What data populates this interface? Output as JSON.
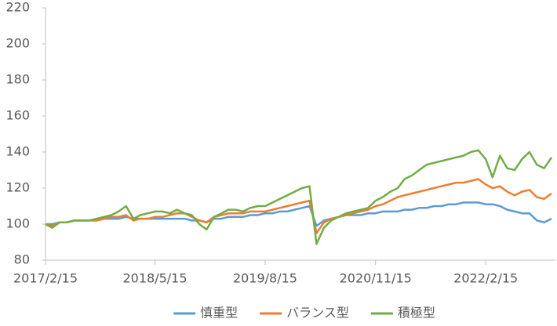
{
  "chart_data": {
    "type": "line",
    "x": [
      "2017/2/15",
      "2017/3/15",
      "2017/4/15",
      "2017/5/15",
      "2017/6/15",
      "2017/7/15",
      "2017/8/15",
      "2017/9/15",
      "2017/10/15",
      "2017/11/15",
      "2017/12/15",
      "2018/1/15",
      "2018/2/15",
      "2018/3/15",
      "2018/4/15",
      "2018/5/15",
      "2018/6/15",
      "2018/7/15",
      "2018/8/15",
      "2018/9/15",
      "2018/10/15",
      "2018/11/15",
      "2018/12/15",
      "2019/1/15",
      "2019/2/15",
      "2019/3/15",
      "2019/4/15",
      "2019/5/15",
      "2019/6/15",
      "2019/7/15",
      "2019/8/15",
      "2019/9/15",
      "2019/10/15",
      "2019/11/15",
      "2019/12/15",
      "2020/1/15",
      "2020/2/15",
      "2020/3/15",
      "2020/4/15",
      "2020/5/15",
      "2020/6/15",
      "2020/7/15",
      "2020/8/15",
      "2020/9/15",
      "2020/10/15",
      "2020/11/15",
      "2020/12/15",
      "2021/1/15",
      "2021/2/15",
      "2021/3/15",
      "2021/4/15",
      "2021/5/15",
      "2021/6/15",
      "2021/7/15",
      "2021/8/15",
      "2021/9/15",
      "2021/10/15",
      "2021/11/15",
      "2021/12/15",
      "2022/1/15",
      "2022/2/15",
      "2022/3/15",
      "2022/4/15",
      "2022/5/15",
      "2022/6/15",
      "2022/7/15",
      "2022/8/15",
      "2022/9/15",
      "2022/10/15",
      "2022/11/15"
    ],
    "series": [
      {
        "name": "慎重型",
        "color": "#5b9bd5",
        "values": [
          100,
          100,
          101,
          101,
          102,
          102,
          102,
          102,
          103,
          103,
          103,
          104,
          103,
          103,
          103,
          103,
          103,
          103,
          103,
          103,
          102,
          102,
          101,
          103,
          103,
          104,
          104,
          104,
          105,
          105,
          106,
          106,
          107,
          107,
          108,
          109,
          110,
          99,
          102,
          103,
          104,
          105,
          105,
          105,
          106,
          106,
          107,
          107,
          107,
          108,
          108,
          109,
          109,
          110,
          110,
          111,
          111,
          112,
          112,
          112,
          111,
          111,
          110,
          108,
          107,
          106,
          106,
          102,
          101,
          103
        ]
      },
      {
        "name": "バランス型",
        "color": "#ed7d31",
        "values": [
          100,
          99,
          101,
          101,
          102,
          102,
          102,
          102,
          103,
          104,
          104,
          105,
          102,
          103,
          103,
          104,
          104,
          105,
          106,
          106,
          104,
          102,
          101,
          104,
          105,
          106,
          106,
          106,
          107,
          107,
          107,
          108,
          109,
          110,
          111,
          112,
          113,
          95,
          101,
          103,
          104,
          105,
          106,
          107,
          108,
          110,
          111,
          113,
          115,
          116,
          117,
          118,
          119,
          120,
          121,
          122,
          123,
          123,
          124,
          125,
          122,
          120,
          121,
          118,
          116,
          118,
          119,
          115,
          114,
          117
        ]
      },
      {
        "name": "積極型",
        "color": "#70ad47",
        "values": [
          100,
          98,
          101,
          101,
          102,
          102,
          102,
          103,
          104,
          105,
          107,
          110,
          103,
          105,
          106,
          107,
          107,
          106,
          108,
          106,
          105,
          100,
          97,
          104,
          106,
          108,
          108,
          107,
          109,
          110,
          110,
          112,
          114,
          116,
          118,
          120,
          121,
          89,
          98,
          102,
          104,
          106,
          107,
          108,
          109,
          113,
          115,
          118,
          120,
          125,
          127,
          130,
          133,
          134,
          135,
          136,
          137,
          138,
          140,
          141,
          136,
          126,
          138,
          131,
          130,
          136,
          140,
          133,
          131,
          137
        ]
      }
    ],
    "xlim": [
      "2017/2/15",
      "2022/12/1"
    ],
    "xticks": [
      "2017/2/15",
      "2018/5/15",
      "2019/8/15",
      "2020/11/15",
      "2022/2/15"
    ],
    "ylim": [
      80,
      220
    ],
    "yticks": [
      80,
      100,
      120,
      140,
      160,
      180,
      200,
      220
    ],
    "grid": false,
    "legend": "bottom"
  }
}
